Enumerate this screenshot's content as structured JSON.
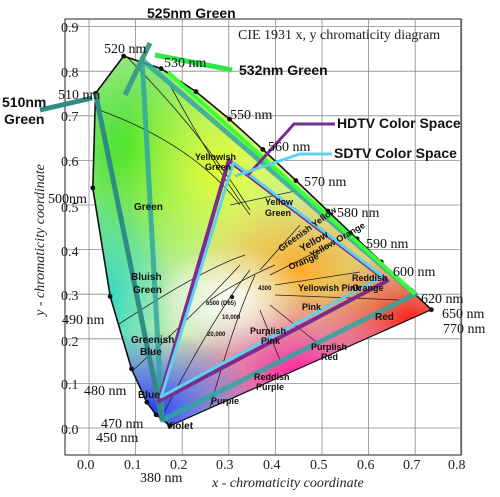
{
  "title": "CIE 1931 x, y chromaticity diagram",
  "xlabel": "x - chromaticity coordinate",
  "ylabel": "y - chromaticity coordinate",
  "x_ticks": [
    "0.0",
    "0.1",
    "0.2",
    "0.3",
    "0.4",
    "0.5",
    "0.6",
    "0.7",
    "0.8"
  ],
  "y_ticks": [
    "0.0",
    "0.1",
    "0.2",
    "0.3",
    "0.4",
    "0.5",
    "0.6",
    "0.7",
    "0.8",
    "0.9"
  ],
  "wavelengths": {
    "w380": "380 nm",
    "w450": "450 nm",
    "w470": "470 nm",
    "w480": "480 nm",
    "w490": "490 nm",
    "w500": "500nm",
    "w510": "510 nm",
    "w520": "520 nm",
    "w530": "530 nm",
    "w550": "550 nm",
    "w560": "560 nm",
    "w570": "570 nm",
    "w580": "580 nm",
    "w590": "590 nm",
    "w600": "600 nm",
    "w620": "620 nm",
    "w650": "650 nm",
    "w770": "770 nm"
  },
  "regions": {
    "green": "Green",
    "bluish_green_1": "Bluish",
    "bluish_green_2": "Green",
    "greenish_blue_1": "Greenish",
    "greenish_blue_2": "Blue",
    "blue": "Blue",
    "violet": "Violet",
    "purple": "Purple",
    "reddish_purple_1": "Reddish",
    "reddish_purple_2": "Purple",
    "purplish_red_1": "Purplish",
    "purplish_red_2": "Red",
    "purplish_pink_1": "Purplish",
    "purplish_pink_2": "Pink",
    "pink": "Pink",
    "red": "Red",
    "yellowish_green_1": "Yellowish",
    "yellowish_green_2": "Green",
    "yellow_green_1": "Yellow",
    "yellow_green_2": "Green",
    "greenish_yellow": "Greenish Yellow",
    "yellow": "Yellow",
    "yellow_orange": "Yellow Orange",
    "orange": "Orange",
    "yellowish_pink": "Yellowish Pink",
    "reddish_orange_1": "Reddish",
    "reddish_orange_2": "Orange"
  },
  "cct": {
    "k4300": "4300",
    "d65": "6500 (D65)",
    "k10000": "10,000",
    "k20000": "20,000"
  },
  "callouts": {
    "g525": "525nm Green",
    "g532": "532nm Green",
    "g510_1": "510nm",
    "g510_2": "Green",
    "hdtv": "HDTV Color Space",
    "sdtv": "SDTV Color Space"
  },
  "colors": {
    "hdtv": "#7b2d8e",
    "sdtv": "#5fd0ee",
    "callout_525": "#3a9e8a",
    "callout_532": "#2ee84a",
    "callout_510": "#2f8c84"
  },
  "chart_data": {
    "type": "diagram",
    "locus": [
      [
        0.1741,
        0.005
      ],
      [
        0.144,
        0.0297
      ],
      [
        0.1241,
        0.0578
      ],
      [
        0.0913,
        0.1327
      ],
      [
        0.0454,
        0.295
      ],
      [
        0.0082,
        0.5384
      ],
      [
        0.0139,
        0.7502
      ],
      [
        0.0743,
        0.8338
      ],
      [
        0.1547,
        0.8059
      ],
      [
        0.2296,
        0.7543
      ],
      [
        0.3016,
        0.6923
      ],
      [
        0.3731,
        0.6245
      ],
      [
        0.4441,
        0.5547
      ],
      [
        0.5125,
        0.4866
      ],
      [
        0.5752,
        0.4242
      ],
      [
        0.627,
        0.3725
      ],
      [
        0.6915,
        0.3083
      ],
      [
        0.7347,
        0.2653
      ]
    ],
    "hdtv_gamut": {
      "R": [
        0.64,
        0.33
      ],
      "G": [
        0.3,
        0.6
      ],
      "B": [
        0.15,
        0.06
      ]
    },
    "sdtv_gamut": {
      "R": [
        0.63,
        0.34
      ],
      "G": [
        0.31,
        0.595
      ],
      "B": [
        0.155,
        0.07
      ]
    },
    "laser_gamut": {
      "R": [
        0.7,
        0.3
      ],
      "G525": [
        0.114,
        0.826
      ],
      "G532": [
        0.17,
        0.797
      ],
      "G510": [
        0.014,
        0.75
      ],
      "B": [
        0.157,
        0.018
      ]
    },
    "white_point_D65": [
      0.3127,
      0.329
    ]
  }
}
